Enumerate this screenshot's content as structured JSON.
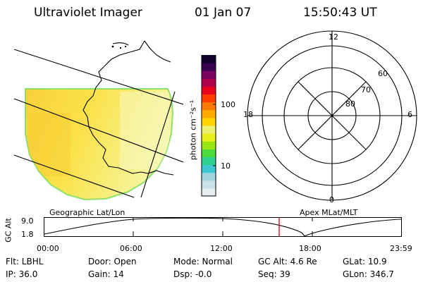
{
  "header": {
    "title": "Ultraviolet Imager",
    "date": "01 Jan 07",
    "time": "15:50:43 UT"
  },
  "colorbar": {
    "unit": "photon cm⁻²s⁻¹",
    "tick_labels": [
      "100",
      "10"
    ],
    "colors": [
      "#e8eef0",
      "#c8e0e6",
      "#9fd4de",
      "#3fc8d2",
      "#2fd090",
      "#4fdc3a",
      "#9ae610",
      "#e8ee18",
      "#f0f070",
      "#ffd200",
      "#ffaa00",
      "#ff7a00",
      "#ff3a00",
      "#e8001c",
      "#b0004a",
      "#7a0060",
      "#3a0050",
      "#10002a"
    ]
  },
  "polar": {
    "hour_labels": [
      "12",
      "18",
      "6",
      "0"
    ],
    "lat_labels": [
      "60",
      "70",
      "80"
    ]
  },
  "timeline": {
    "left_title": "Geographic Lat/Lon",
    "right_title": "Apex MLat/MLT",
    "y_axis_label": "GC Alt",
    "y_max": "9.0",
    "y_min": "1.8",
    "x_ticks": [
      "00:00",
      "06:00",
      "12:00",
      "18:00",
      "23:59"
    ],
    "marker_color": "#e00000"
  },
  "info": {
    "filter": "Flt: LBHL",
    "ip": "IP: 36.0",
    "door": "Door: Open",
    "gain": "Gain: 14",
    "mode": "Mode: Normal",
    "dsp": "Dsp:   -0.0",
    "gc_alt": "GC Alt: 4.6 Re",
    "seq": "Seq: 39",
    "glat": "GLat:  10.9",
    "glon": "GLon: 346.7"
  }
}
